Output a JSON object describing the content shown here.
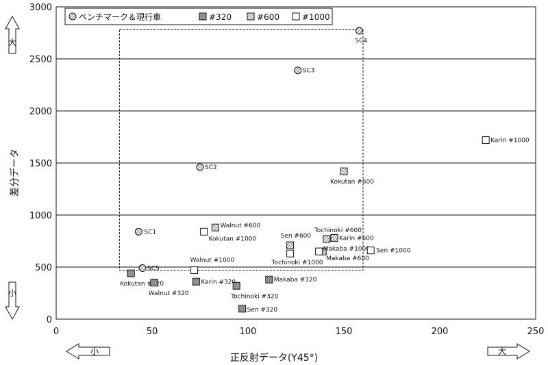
{
  "chart_data": {
    "type": "scatter",
    "xlabel": "正反射データ(Y45°)",
    "ylabel": "差分データ",
    "xlim": [
      0,
      250
    ],
    "ylim": [
      0,
      3000
    ],
    "x_ticks": [
      0,
      50,
      100,
      150,
      200,
      250
    ],
    "y_ticks": [
      0,
      500,
      1000,
      1500,
      2000,
      2500,
      3000
    ],
    "grid": "horizontal",
    "legend_placement": "top-left",
    "y_big_label": "大",
    "y_small_label": "小",
    "x_small_label": "小",
    "x_big_label": "大",
    "region": {
      "x": [
        33,
        160
      ],
      "y": [
        470,
        2780
      ]
    },
    "series": [
      {
        "name": "ベンチマーク＆現行車",
        "marker": "hatch-circle",
        "points": [
          {
            "x": 43,
            "y": 840,
            "label": "SC1"
          },
          {
            "x": 75,
            "y": 1460,
            "label": "SC2"
          },
          {
            "x": 126,
            "y": 2390,
            "label": "SC3"
          },
          {
            "x": 158,
            "y": 2770,
            "label": "SC4"
          },
          {
            "x": 45,
            "y": 490,
            "label": "SC5"
          }
        ]
      },
      {
        "name": "#320",
        "marker": "cross-square",
        "points": [
          {
            "x": 39,
            "y": 440,
            "label": "Kokutan #320"
          },
          {
            "x": 51,
            "y": 350,
            "label": "Walnut #320"
          },
          {
            "x": 73,
            "y": 360,
            "label": "Karin #320"
          },
          {
            "x": 94,
            "y": 320,
            "label": "Tochinoki #320"
          },
          {
            "x": 97,
            "y": 100,
            "label": "Sen #320"
          },
          {
            "x": 111,
            "y": 380,
            "label": "Makaba #320"
          }
        ]
      },
      {
        "name": "#600",
        "marker": "hatch-square",
        "points": [
          {
            "x": 83,
            "y": 880,
            "label": "Walnut #600"
          },
          {
            "x": 122,
            "y": 710,
            "label": "Sen #600"
          },
          {
            "x": 141,
            "y": 770,
            "label": "Tochinoki #600"
          },
          {
            "x": 145,
            "y": 780,
            "label": "Karin #600"
          },
          {
            "x": 139,
            "y": 650,
            "label": "Makaba #600"
          },
          {
            "x": 150,
            "y": 1420,
            "label": "Kokutan #600"
          }
        ]
      },
      {
        "name": "#1000",
        "marker": "open-square",
        "points": [
          {
            "x": 77,
            "y": 840,
            "label": "Kokutan #1000"
          },
          {
            "x": 72,
            "y": 470,
            "label": "Walnut #1000"
          },
          {
            "x": 122,
            "y": 630,
            "label": "Tochinoki #1000"
          },
          {
            "x": 137,
            "y": 650,
            "label": "Makaba #1000"
          },
          {
            "x": 164,
            "y": 660,
            "label": "Sen #1000"
          },
          {
            "x": 224,
            "y": 1720,
            "label": "Karin #1000"
          }
        ]
      }
    ]
  }
}
